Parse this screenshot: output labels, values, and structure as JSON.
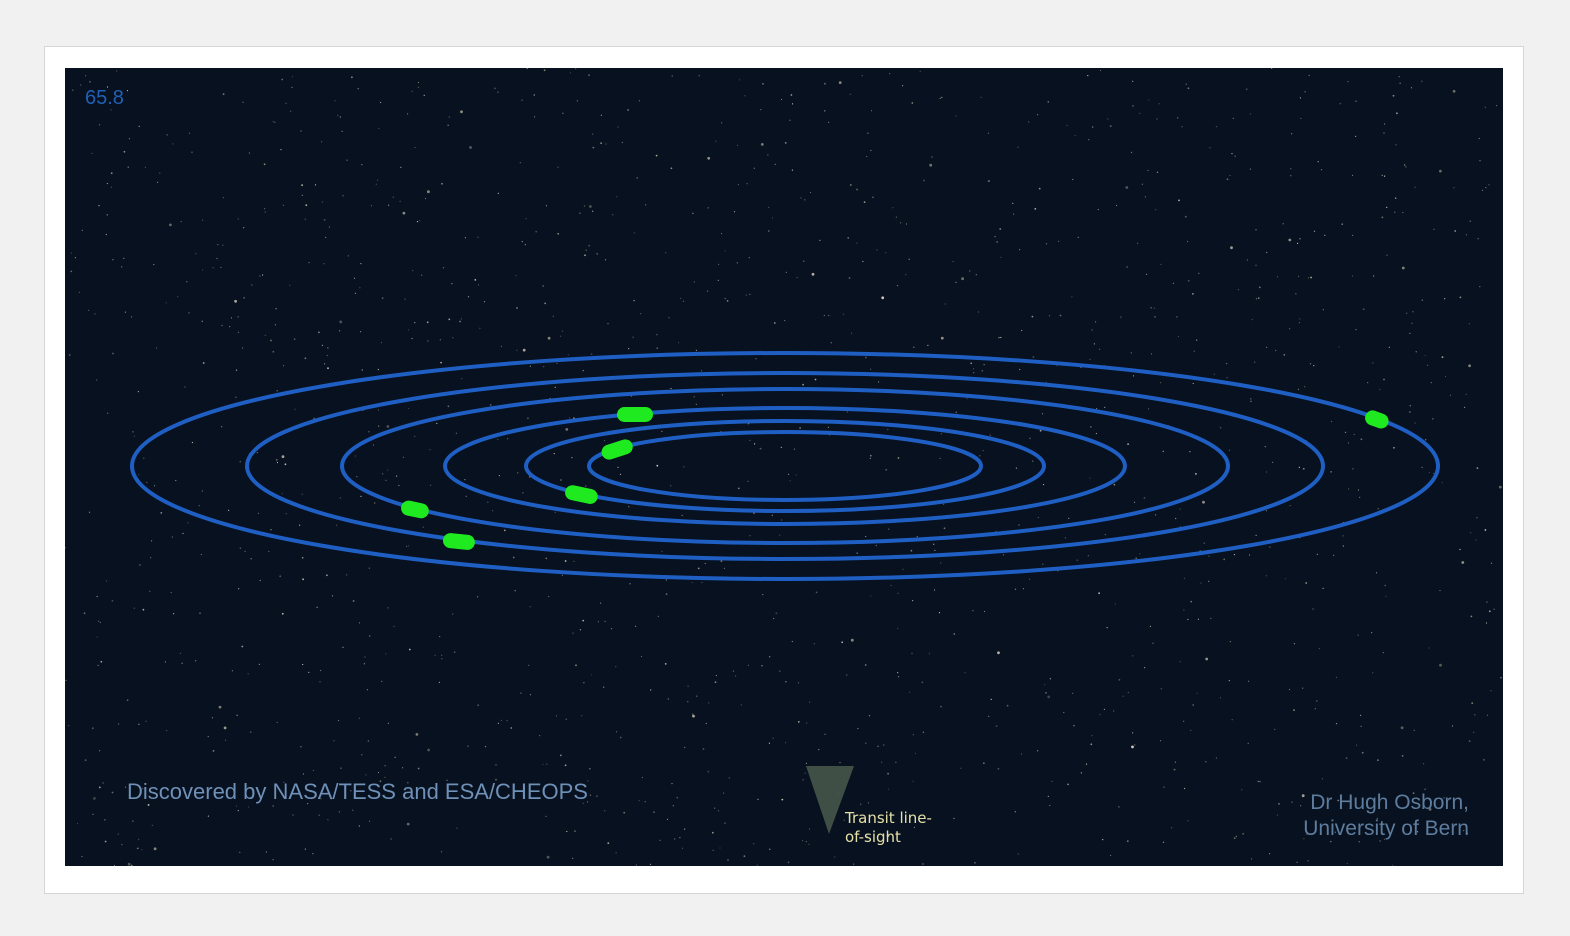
{
  "animation": {
    "counter": "65.8"
  },
  "credits": {
    "discovery": "Discovered by NASA/TESS and ESA/CHEOPS",
    "author_line1": "Dr Hugh Osborn,",
    "author_line2": "University of Bern"
  },
  "transit": {
    "label_line1": "Transit line-",
    "label_line2": "of-sight"
  },
  "colors": {
    "space": "#07111f",
    "orbit": "#1f5fc4",
    "planet": "#1fea1f",
    "counter": "#2160b8",
    "transit_cone": "#4a5a4e"
  },
  "orbits_count": 6,
  "planets_count": 6
}
